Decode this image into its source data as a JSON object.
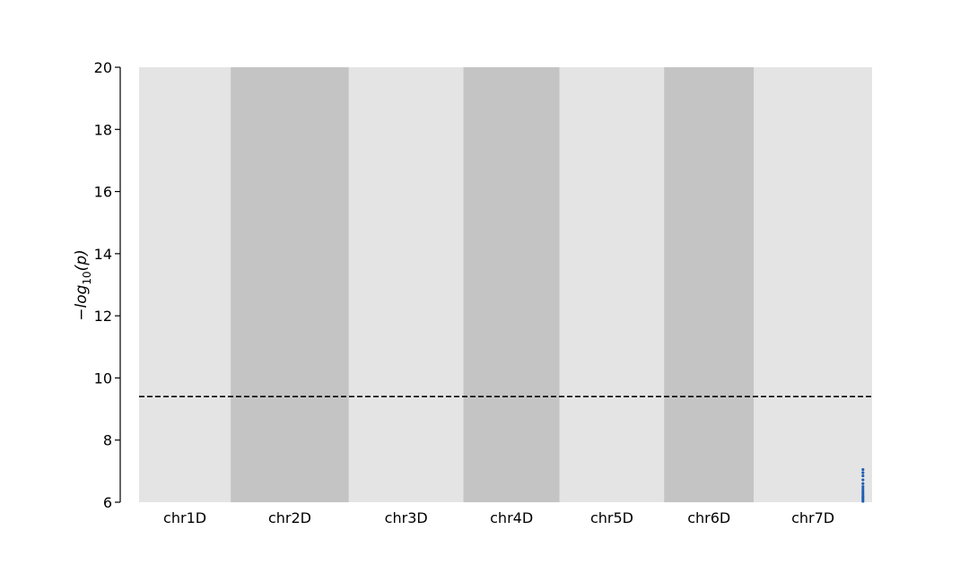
{
  "chart_data": {
    "type": "scatter",
    "title": "",
    "ylabel_parts": {
      "minus": "−",
      "log": "log",
      "sub": "10",
      "arg": "(p)"
    },
    "xlabel": "",
    "ylim": [
      6,
      20
    ],
    "yticks": [
      6,
      8,
      10,
      12,
      14,
      16,
      18,
      20
    ],
    "threshold": 9.4,
    "chromosomes": [
      {
        "name": "chr1D",
        "start": 0,
        "end": 1.0,
        "shade": "#e4e4e4"
      },
      {
        "name": "chr2D",
        "start": 1.0,
        "end": 2.29,
        "shade": "#c4c4c4"
      },
      {
        "name": "chr3D",
        "start": 2.29,
        "end": 3.54,
        "shade": "#e4e4e4"
      },
      {
        "name": "chr4D",
        "start": 3.54,
        "end": 4.59,
        "shade": "#c4c4c4"
      },
      {
        "name": "chr5D",
        "start": 4.59,
        "end": 5.73,
        "shade": "#e4e4e4"
      },
      {
        "name": "chr6D",
        "start": 5.73,
        "end": 6.71,
        "shade": "#c4c4c4"
      },
      {
        "name": "chr7D",
        "start": 6.71,
        "end": 8.0,
        "shade": "#e4e4e4"
      }
    ],
    "points": [
      {
        "x": 7.9,
        "y": 7.05
      },
      {
        "x": 7.9,
        "y": 6.95
      },
      {
        "x": 7.9,
        "y": 6.85
      },
      {
        "x": 7.9,
        "y": 6.72
      },
      {
        "x": 7.9,
        "y": 6.6
      },
      {
        "x": 7.9,
        "y": 6.5
      },
      {
        "x": 7.9,
        "y": 6.42
      },
      {
        "x": 7.9,
        "y": 6.34
      },
      {
        "x": 7.9,
        "y": 6.27
      },
      {
        "x": 7.9,
        "y": 6.2
      },
      {
        "x": 7.9,
        "y": 6.14
      },
      {
        "x": 7.9,
        "y": 6.08
      },
      {
        "x": 7.9,
        "y": 6.03
      }
    ],
    "point_color": "#1f5fb4",
    "threshold_color": "#000000"
  }
}
